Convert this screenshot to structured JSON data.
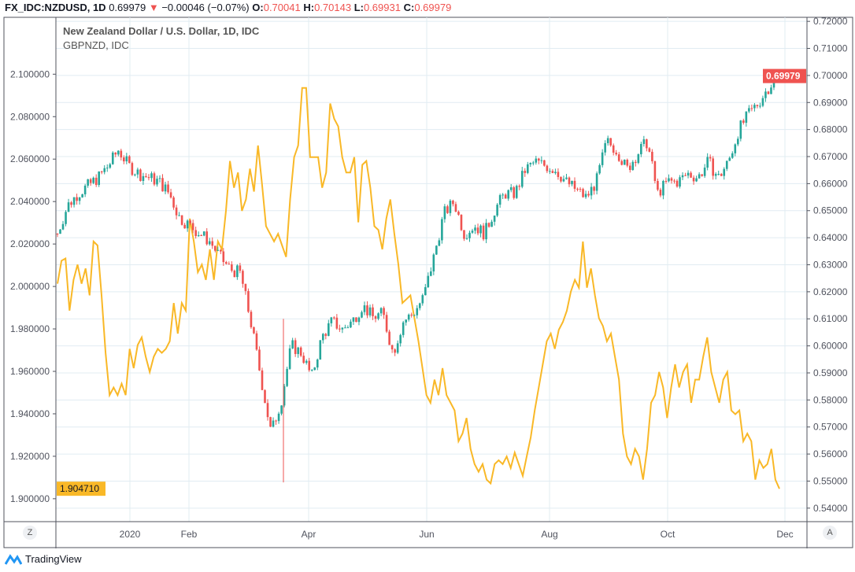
{
  "header": {
    "symbol": "FX_IDC:NZDUSD, 1D",
    "last": "0.69979",
    "change": "−0.00046 (−0.07%)",
    "o_label": "O:",
    "o": "0.70041",
    "h_label": "H:",
    "h": "0.70143",
    "l_label": "L:",
    "l": "0.69931",
    "c_label": "C:",
    "c": "0.69979"
  },
  "legend": {
    "main": "New Zealand Dollar / U.S. Dollar, 1D, IDC",
    "compare": "GBPNZD, IDC"
  },
  "buttons": {
    "left_scale": "Z",
    "right_scale": "A"
  },
  "brand": "TradingView",
  "colors": {
    "up": "#26a69a",
    "down": "#ef5350",
    "line": "#f9b827",
    "grid": "#e1ecf2"
  },
  "chart_data": {
    "type": "candlestick+line",
    "title": "New Zealand Dollar / U.S. Dollar, 1D, IDC",
    "x_ticks": [
      "2020",
      "Feb",
      "Apr",
      "Jun",
      "Aug",
      "Oct",
      "Dec"
    ],
    "right_axis": {
      "ylim": [
        0.535,
        0.7215
      ],
      "ticks": [
        "0.54000",
        "0.55000",
        "0.56000",
        "0.57000",
        "0.58000",
        "0.59000",
        "0.60000",
        "0.61000",
        "0.62000",
        "0.63000",
        "0.64000",
        "0.65000",
        "0.66000",
        "0.67000",
        "0.68000",
        "0.69000",
        "0.70000",
        "0.71000",
        "0.72000"
      ]
    },
    "left_axis": {
      "ylim": [
        1.8892,
        2.1268
      ],
      "ticks": [
        "1.900000",
        "1.920000",
        "1.940000",
        "1.960000",
        "1.980000",
        "2.000000",
        "2.020000",
        "2.040000",
        "2.060000",
        "2.080000",
        "2.100000"
      ]
    },
    "last_right_label": "0.69979",
    "last_left_label": "1.904710",
    "series": [
      {
        "name": "NZDUSD",
        "kind": "candles",
        "axis": "right",
        "close_path": [
          0.6415,
          0.6519,
          0.6563,
          0.6592,
          0.6622,
          0.6666,
          0.6725,
          0.6666,
          0.6637,
          0.6622,
          0.6607,
          0.6563,
          0.6474,
          0.6445,
          0.6415,
          0.6386,
          0.6327,
          0.6283,
          0.6268,
          0.6091,
          0.5884,
          0.5678,
          0.5796,
          0.6002,
          0.5973,
          0.5884,
          0.6032,
          0.6091,
          0.6061,
          0.6091,
          0.615,
          0.6106,
          0.612,
          0.5973,
          0.6091,
          0.612,
          0.6179,
          0.6327,
          0.6489,
          0.6533,
          0.6415,
          0.6445,
          0.6415,
          0.6504,
          0.6563,
          0.6563,
          0.6651,
          0.6681,
          0.6666,
          0.6651,
          0.6607,
          0.6578,
          0.6548,
          0.6607,
          0.6755,
          0.6725,
          0.6651,
          0.671,
          0.6755,
          0.6563,
          0.6607,
          0.6607,
          0.6637,
          0.6622,
          0.6681,
          0.6622,
          0.6681,
          0.6799,
          0.6858,
          0.6902,
          0.6961,
          0.6998
        ]
      },
      {
        "name": "GBPNZD",
        "kind": "line",
        "axis": "left",
        "values": [
          2.0013,
          2.0121,
          2.0132,
          1.9886,
          2.0031,
          2.0103,
          2.0013,
          2.0085,
          1.9958,
          2.0212,
          2.0193,
          1.9958,
          1.9687,
          1.9488,
          1.9524,
          1.9488,
          1.9542,
          1.9488,
          1.9706,
          1.9615,
          1.9724,
          1.976,
          1.9669,
          1.9597,
          1.9669,
          1.9706,
          1.9687,
          1.9706,
          1.9742,
          1.9922,
          1.9778,
          1.9922,
          1.9886,
          2.032,
          2.0212,
          2.0067,
          2.0103,
          2.0031,
          2.0175,
          2.0031,
          2.0212,
          2.0175,
          2.0356,
          2.0591,
          2.0465,
          2.0537,
          2.0356,
          2.041,
          2.0555,
          2.0447,
          2.0664,
          2.0483,
          2.0284,
          2.0248,
          2.0212,
          2.0248,
          2.0193,
          2.0139,
          2.041,
          2.0609,
          2.0664,
          2.0935,
          2.0935,
          2.0609,
          2.0609,
          2.0609,
          2.0465,
          2.0537,
          2.0862,
          2.079,
          2.0754,
          2.0609,
          2.0537,
          2.0537,
          2.0609,
          2.0302,
          2.0573,
          2.0591,
          2.0465,
          2.0284,
          2.0266,
          2.0175,
          2.032,
          2.041,
          2.0248,
          2.0103,
          1.9922,
          1.994,
          1.9958,
          1.985,
          1.9742,
          1.9615,
          1.9488,
          1.9452,
          1.9561,
          1.9488,
          1.9615,
          1.9488,
          1.9452,
          1.9416,
          1.9271,
          1.9307,
          1.938,
          1.9235,
          1.9163,
          1.9127,
          1.9163,
          1.909,
          1.9072,
          1.9163,
          1.9181,
          1.9163,
          1.9199,
          1.9145,
          1.9217,
          1.9163,
          1.9108,
          1.9199,
          1.9289,
          1.9416,
          1.9524,
          1.9633,
          1.9742,
          1.9778,
          1.9706,
          1.9796,
          1.9832,
          1.9886,
          1.9976,
          2.0031,
          1.9994,
          2.0212,
          1.9994,
          2.0085,
          1.9958,
          1.985,
          1.9814,
          1.9742,
          1.9778,
          1.9669,
          1.9561,
          1.9307,
          1.9199,
          1.9163,
          1.9235,
          1.9199,
          1.909,
          1.9235,
          1.9452,
          1.9488,
          1.9597,
          1.9524,
          1.938,
          1.9524,
          1.9633,
          1.9524,
          1.9597,
          1.9633,
          1.9452,
          1.9561,
          1.9561,
          1.9669,
          1.976,
          1.9597,
          1.9524,
          1.9452,
          1.9561,
          1.9597,
          1.9416,
          1.9398,
          1.9416,
          1.9271,
          1.9307,
          1.9271,
          1.909,
          1.9181,
          1.9145,
          1.9163,
          1.9235,
          1.909,
          1.9047
        ]
      }
    ]
  }
}
